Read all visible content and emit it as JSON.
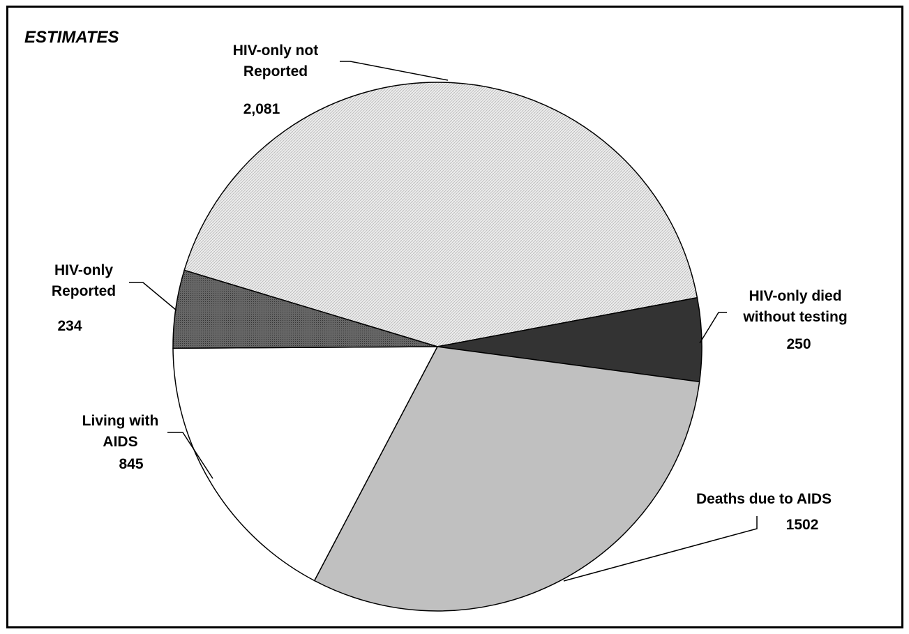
{
  "chart_data": {
    "type": "pie",
    "title": "ESTIMATES",
    "categories": [
      "HIV-only not Reported",
      "HIV-only died without testing",
      "Deaths due to AIDS",
      "Living with AIDS",
      "HIV-only Reported"
    ],
    "values": [
      2081,
      250,
      1502,
      845,
      234
    ],
    "value_labels": [
      "2,081",
      "250",
      "1502",
      "845",
      "234"
    ],
    "colors": [
      "#e2e2e2",
      "#333333",
      "#c0c0c0",
      "#ffffff",
      "#555555"
    ]
  }
}
